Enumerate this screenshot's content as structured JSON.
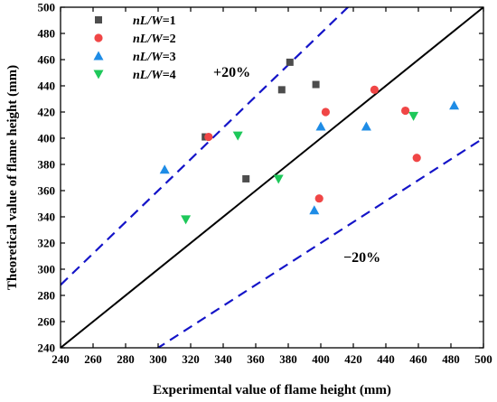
{
  "chart_data": {
    "type": "scatter",
    "title": "",
    "xlabel": "Experimental value of flame height (mm)",
    "ylabel": "Theoretical value of flame height (mm)",
    "xlim": [
      240,
      500
    ],
    "ylim": [
      240,
      500
    ],
    "xticks": [
      240,
      260,
      280,
      300,
      320,
      340,
      360,
      380,
      400,
      420,
      440,
      460,
      480,
      500
    ],
    "yticks": [
      240,
      260,
      280,
      300,
      320,
      340,
      360,
      380,
      400,
      420,
      440,
      460,
      480,
      500
    ],
    "grid": false,
    "legend_position": "top-left",
    "series": [
      {
        "name": "nL/W=1",
        "name_parts": [
          "nL/W",
          "=1"
        ],
        "marker": "square",
        "color": "#4d4d4d",
        "points": [
          [
            329,
            401
          ],
          [
            354,
            369
          ],
          [
            376,
            437
          ],
          [
            381,
            458
          ],
          [
            397,
            441
          ]
        ]
      },
      {
        "name": "nL/W=2",
        "name_parts": [
          "nL/W",
          "=2"
        ],
        "marker": "circle",
        "color": "#f04646",
        "points": [
          [
            331,
            401
          ],
          [
            399,
            354
          ],
          [
            403,
            420
          ],
          [
            433,
            437
          ],
          [
            452,
            421
          ],
          [
            459,
            385
          ]
        ]
      },
      {
        "name": "nL/W=3",
        "name_parts": [
          "nL/W",
          "=3"
        ],
        "marker": "triangle-up",
        "color": "#1e8ce6",
        "points": [
          [
            304,
            376
          ],
          [
            396,
            345
          ],
          [
            400,
            409
          ],
          [
            428,
            409
          ],
          [
            482,
            425
          ]
        ]
      },
      {
        "name": "nL/W=4",
        "name_parts": [
          "nL/W",
          "=4"
        ],
        "marker": "triangle-down",
        "color": "#1ec85a",
        "points": [
          [
            317,
            338
          ],
          [
            349,
            402
          ],
          [
            374,
            369
          ],
          [
            457,
            417
          ]
        ]
      }
    ],
    "reference_lines": [
      {
        "name": "y=x",
        "style": "solid",
        "color": "#000000",
        "factor": 1.0
      },
      {
        "name": "+20%",
        "style": "dashed",
        "color": "#1414c8",
        "factor": 1.2
      },
      {
        "name": "-20%",
        "style": "dashed",
        "color": "#1414c8",
        "factor": 0.8
      }
    ],
    "annotations": [
      {
        "text": "+20%"
      },
      {
        "text": "−20%"
      }
    ]
  }
}
